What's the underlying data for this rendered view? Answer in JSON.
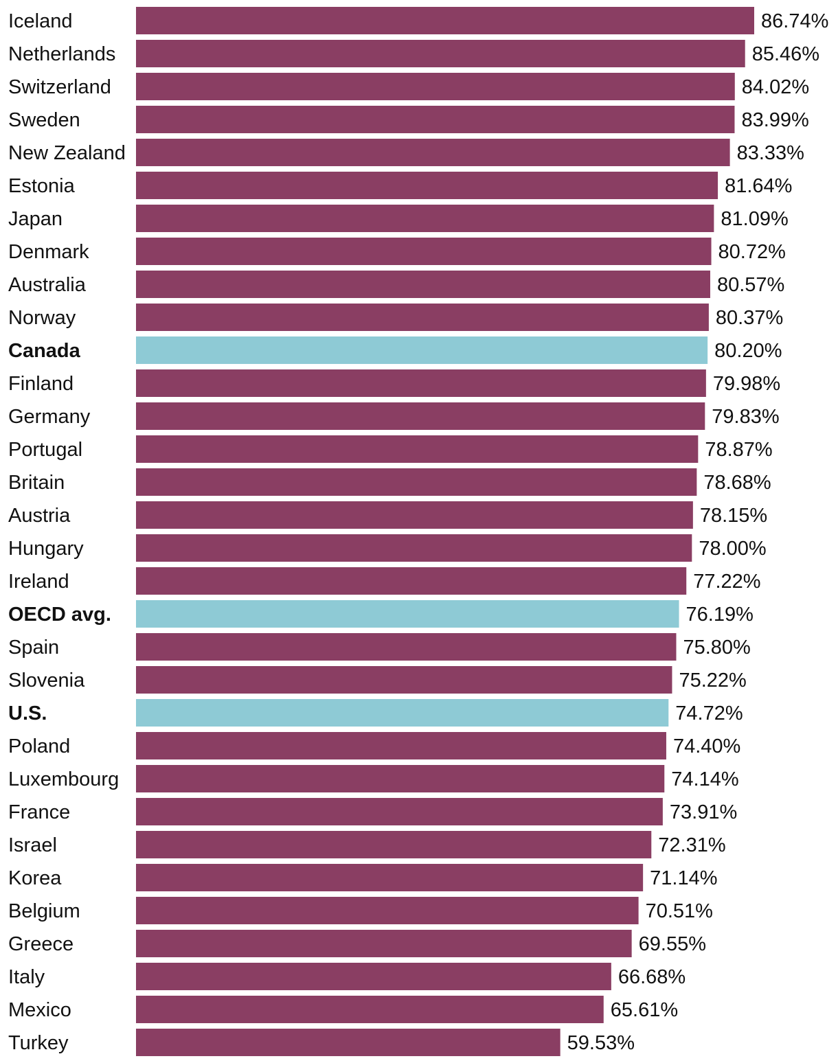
{
  "chart_data": {
    "type": "bar",
    "orientation": "horizontal",
    "title": "",
    "xlabel": "",
    "ylabel": "",
    "value_suffix": "%",
    "xlim": [
      0,
      86.74
    ],
    "colors": {
      "default": "#8a3e63",
      "highlight": "#8ecad5"
    },
    "highlighted": [
      "Canada",
      "OECD avg.",
      "U.S."
    ],
    "categories": [
      "Iceland",
      "Netherlands",
      "Switzerland",
      "Sweden",
      "New Zealand",
      "Estonia",
      "Japan",
      "Denmark",
      "Australia",
      "Norway",
      "Canada",
      "Finland",
      "Germany",
      "Portugal",
      "Britain",
      "Austria",
      "Hungary",
      "Ireland",
      "OECD avg.",
      "Spain",
      "Slovenia",
      "U.S.",
      "Poland",
      "Luxembourg",
      "France",
      "Israel",
      "Korea",
      "Belgium",
      "Greece",
      "Italy",
      "Mexico",
      "Turkey"
    ],
    "values": [
      86.74,
      85.46,
      84.02,
      83.99,
      83.33,
      81.64,
      81.09,
      80.72,
      80.57,
      80.37,
      80.2,
      79.98,
      79.83,
      78.87,
      78.68,
      78.15,
      78.0,
      77.22,
      76.19,
      75.8,
      75.22,
      74.72,
      74.4,
      74.14,
      73.91,
      72.31,
      71.14,
      70.51,
      69.55,
      66.68,
      65.61,
      59.53
    ],
    "value_labels": [
      "86.74%",
      "85.46%",
      "84.02%",
      "83.99%",
      "83.33%",
      "81.64%",
      "81.09%",
      "80.72%",
      "80.57%",
      "80.37%",
      "80.20%",
      "79.98%",
      "79.83%",
      "78.87%",
      "78.68%",
      "78.15%",
      "78.00%",
      "77.22%",
      "76.19%",
      "75.80%",
      "75.22%",
      "74.72%",
      "74.40%",
      "74.14%",
      "73.91%",
      "72.31%",
      "71.14%",
      "70.51%",
      "69.55%",
      "66.68%",
      "65.61%",
      "59.53%"
    ]
  }
}
